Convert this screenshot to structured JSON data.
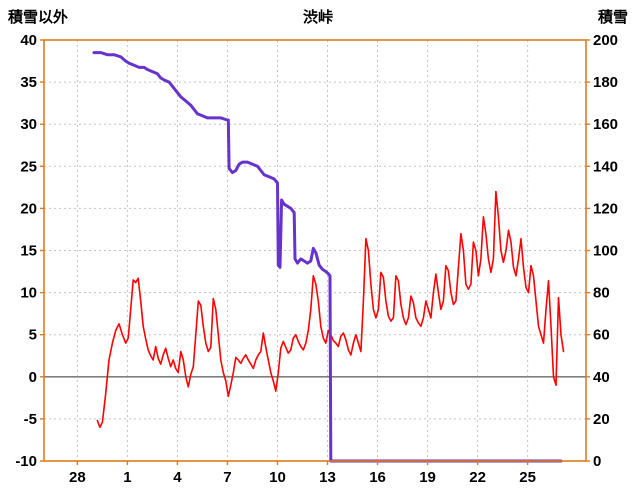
{
  "chart_data": {
    "type": "line",
    "title": "渋峠",
    "left_axis": {
      "label": "積雪以外",
      "min": -10,
      "max": 40,
      "ticks": [
        40,
        35,
        30,
        25,
        20,
        15,
        10,
        5,
        0,
        -5,
        -10
      ]
    },
    "right_axis": {
      "label": "積雪",
      "min": 0,
      "max": 200,
      "ticks": [
        200,
        180,
        160,
        140,
        120,
        100,
        80,
        60,
        40,
        20,
        0
      ]
    },
    "x_axis": {
      "min": -2,
      "max": 30.5,
      "tick_positions": [
        0,
        3,
        6,
        9,
        12,
        15,
        18,
        21,
        24,
        27
      ],
      "tick_labels": [
        "28",
        "1",
        "4",
        "7",
        "10",
        "13",
        "16",
        "19",
        "22",
        "25"
      ]
    },
    "zero_line_value": 0,
    "grid": true,
    "colors": {
      "frame": "#e07b1e",
      "grid": "#c4c4c4",
      "zero_line": "#7f7f7f",
      "text": "#000000",
      "temperature": "#ff0000",
      "snow": "#6633cc",
      "background": "#ffffff"
    },
    "series": [
      {
        "name": "積雪以外",
        "axis": "left",
        "color": "#ff0000",
        "width": 1.6,
        "points": [
          [
            1.2,
            -5.2
          ],
          [
            1.35,
            -6
          ],
          [
            1.5,
            -5.4
          ],
          [
            1.7,
            -2
          ],
          [
            1.9,
            2
          ],
          [
            2.1,
            4
          ],
          [
            2.3,
            5.5
          ],
          [
            2.5,
            6.3
          ],
          [
            2.7,
            5
          ],
          [
            2.9,
            4
          ],
          [
            3.05,
            4.6
          ],
          [
            3.2,
            8
          ],
          [
            3.35,
            11.5
          ],
          [
            3.5,
            11.2
          ],
          [
            3.65,
            11.7
          ],
          [
            3.8,
            9
          ],
          [
            3.95,
            6
          ],
          [
            4.1,
            4.5
          ],
          [
            4.25,
            3.2
          ],
          [
            4.4,
            2.5
          ],
          [
            4.55,
            2
          ],
          [
            4.7,
            3.6
          ],
          [
            4.85,
            2.2
          ],
          [
            5.0,
            1.5
          ],
          [
            5.15,
            2.6
          ],
          [
            5.3,
            3.4
          ],
          [
            5.45,
            2.2
          ],
          [
            5.6,
            1.2
          ],
          [
            5.75,
            2
          ],
          [
            5.9,
            1
          ],
          [
            6.05,
            0.5
          ],
          [
            6.2,
            3
          ],
          [
            6.35,
            2
          ],
          [
            6.5,
            0
          ],
          [
            6.65,
            -1.2
          ],
          [
            6.8,
            0.3
          ],
          [
            6.95,
            1.2
          ],
          [
            7.1,
            5
          ],
          [
            7.25,
            9
          ],
          [
            7.4,
            8.5
          ],
          [
            7.55,
            6
          ],
          [
            7.7,
            4
          ],
          [
            7.85,
            3
          ],
          [
            8.0,
            3.5
          ],
          [
            8.15,
            9.3
          ],
          [
            8.3,
            8
          ],
          [
            8.45,
            5
          ],
          [
            8.6,
            2
          ],
          [
            8.75,
            0.5
          ],
          [
            8.9,
            -0.5
          ],
          [
            9.05,
            -2.3
          ],
          [
            9.2,
            -1
          ],
          [
            9.35,
            0.5
          ],
          [
            9.5,
            2.3
          ],
          [
            9.65,
            2
          ],
          [
            9.8,
            1.6
          ],
          [
            9.95,
            2.2
          ],
          [
            10.1,
            2.6
          ],
          [
            10.25,
            2
          ],
          [
            10.4,
            1.5
          ],
          [
            10.55,
            1
          ],
          [
            10.7,
            2
          ],
          [
            10.85,
            2.6
          ],
          [
            11.0,
            3
          ],
          [
            11.15,
            5.2
          ],
          [
            11.3,
            3.5
          ],
          [
            11.45,
            2
          ],
          [
            11.6,
            0.5
          ],
          [
            11.75,
            -0.5
          ],
          [
            11.9,
            -1.7
          ],
          [
            12.05,
            0.5
          ],
          [
            12.2,
            3.4
          ],
          [
            12.35,
            4.2
          ],
          [
            12.5,
            3.5
          ],
          [
            12.65,
            2.8
          ],
          [
            12.8,
            3.2
          ],
          [
            12.95,
            4.6
          ],
          [
            13.1,
            5
          ],
          [
            13.25,
            4.2
          ],
          [
            13.4,
            3.6
          ],
          [
            13.55,
            3.2
          ],
          [
            13.7,
            4
          ],
          [
            13.85,
            5.5
          ],
          [
            14.0,
            8
          ],
          [
            14.15,
            12
          ],
          [
            14.3,
            11
          ],
          [
            14.45,
            9
          ],
          [
            14.6,
            6
          ],
          [
            14.75,
            4.6
          ],
          [
            14.9,
            4
          ],
          [
            15.05,
            5.5
          ],
          [
            15.2,
            5
          ],
          [
            15.35,
            4.3
          ],
          [
            15.5,
            4
          ],
          [
            15.65,
            3.6
          ],
          [
            15.8,
            4.8
          ],
          [
            15.95,
            5.2
          ],
          [
            16.1,
            4.4
          ],
          [
            16.25,
            3.2
          ],
          [
            16.4,
            2.6
          ],
          [
            16.55,
            4
          ],
          [
            16.7,
            5
          ],
          [
            16.85,
            4
          ],
          [
            17.0,
            3
          ],
          [
            17.15,
            9
          ],
          [
            17.3,
            16.4
          ],
          [
            17.45,
            15
          ],
          [
            17.6,
            11
          ],
          [
            17.75,
            8
          ],
          [
            17.9,
            7
          ],
          [
            18.05,
            8
          ],
          [
            18.2,
            12.4
          ],
          [
            18.35,
            11.8
          ],
          [
            18.5,
            9
          ],
          [
            18.65,
            7.2
          ],
          [
            18.8,
            6.6
          ],
          [
            18.95,
            7
          ],
          [
            19.1,
            12
          ],
          [
            19.25,
            11.4
          ],
          [
            19.4,
            8.6
          ],
          [
            19.55,
            7
          ],
          [
            19.7,
            6.2
          ],
          [
            19.85,
            7
          ],
          [
            20.0,
            9.6
          ],
          [
            20.15,
            8.8
          ],
          [
            20.3,
            7
          ],
          [
            20.45,
            6.4
          ],
          [
            20.6,
            6
          ],
          [
            20.75,
            7
          ],
          [
            20.9,
            9
          ],
          [
            21.05,
            8
          ],
          [
            21.2,
            7
          ],
          [
            21.35,
            10
          ],
          [
            21.5,
            12.2
          ],
          [
            21.65,
            10
          ],
          [
            21.8,
            8
          ],
          [
            21.95,
            9
          ],
          [
            22.1,
            13.2
          ],
          [
            22.25,
            12.6
          ],
          [
            22.4,
            10
          ],
          [
            22.55,
            8.6
          ],
          [
            22.7,
            9
          ],
          [
            22.85,
            13
          ],
          [
            23.0,
            17
          ],
          [
            23.15,
            15
          ],
          [
            23.3,
            11
          ],
          [
            23.45,
            10.4
          ],
          [
            23.6,
            11
          ],
          [
            23.75,
            16
          ],
          [
            23.9,
            15
          ],
          [
            24.05,
            12
          ],
          [
            24.2,
            14
          ],
          [
            24.35,
            19
          ],
          [
            24.5,
            17
          ],
          [
            24.65,
            14
          ],
          [
            24.8,
            12.4
          ],
          [
            24.95,
            14
          ],
          [
            25.1,
            22
          ],
          [
            25.25,
            19
          ],
          [
            25.4,
            15
          ],
          [
            25.55,
            13.6
          ],
          [
            25.7,
            15
          ],
          [
            25.85,
            17.4
          ],
          [
            26.0,
            16
          ],
          [
            26.15,
            13
          ],
          [
            26.3,
            12
          ],
          [
            26.45,
            14
          ],
          [
            26.6,
            16.4
          ],
          [
            26.75,
            13
          ],
          [
            26.9,
            10.6
          ],
          [
            27.05,
            10
          ],
          [
            27.2,
            13.2
          ],
          [
            27.35,
            12
          ],
          [
            27.5,
            9
          ],
          [
            27.65,
            6
          ],
          [
            27.8,
            5
          ],
          [
            27.95,
            4
          ],
          [
            28.1,
            8
          ],
          [
            28.25,
            11.4
          ],
          [
            28.4,
            6
          ],
          [
            28.55,
            0
          ],
          [
            28.7,
            -1
          ],
          [
            28.85,
            9.4
          ],
          [
            29.0,
            5
          ],
          [
            29.15,
            3
          ]
        ]
      },
      {
        "name": "積雪",
        "axis": "right",
        "color": "#6633cc",
        "width": 3,
        "points": [
          [
            1.0,
            194
          ],
          [
            1.4,
            194
          ],
          [
            1.8,
            193
          ],
          [
            2.2,
            193
          ],
          [
            2.6,
            192
          ],
          [
            2.9,
            190
          ],
          [
            3.1,
            189
          ],
          [
            3.4,
            188
          ],
          [
            3.7,
            187
          ],
          [
            4.0,
            187
          ],
          [
            4.2,
            186
          ],
          [
            4.5,
            185
          ],
          [
            4.8,
            184
          ],
          [
            5.0,
            182
          ],
          [
            5.2,
            181
          ],
          [
            5.5,
            180
          ],
          [
            5.8,
            177
          ],
          [
            6.0,
            175
          ],
          [
            6.2,
            173
          ],
          [
            6.5,
            171
          ],
          [
            6.8,
            169
          ],
          [
            7.0,
            167
          ],
          [
            7.2,
            165
          ],
          [
            7.5,
            164
          ],
          [
            7.8,
            163
          ],
          [
            8.2,
            163
          ],
          [
            8.6,
            163
          ],
          [
            9.0,
            162
          ],
          [
            9.05,
            162
          ],
          [
            9.1,
            139
          ],
          [
            9.3,
            137
          ],
          [
            9.5,
            138
          ],
          [
            9.7,
            141
          ],
          [
            9.9,
            142
          ],
          [
            10.2,
            142
          ],
          [
            10.5,
            141
          ],
          [
            10.8,
            140
          ],
          [
            11.0,
            138
          ],
          [
            11.2,
            136
          ],
          [
            11.5,
            135
          ],
          [
            11.8,
            134
          ],
          [
            12.0,
            132
          ],
          [
            12.05,
            93
          ],
          [
            12.15,
            92
          ],
          [
            12.25,
            124
          ],
          [
            12.4,
            122
          ],
          [
            12.6,
            121
          ],
          [
            12.8,
            120
          ],
          [
            13.0,
            118
          ],
          [
            13.05,
            96
          ],
          [
            13.2,
            94
          ],
          [
            13.4,
            96
          ],
          [
            13.6,
            95
          ],
          [
            13.8,
            94
          ],
          [
            14.0,
            95
          ],
          [
            14.15,
            101
          ],
          [
            14.3,
            99
          ],
          [
            14.5,
            93
          ],
          [
            14.7,
            91
          ],
          [
            14.9,
            90
          ],
          [
            15.05,
            89
          ],
          [
            15.15,
            88
          ],
          [
            15.2,
            0
          ],
          [
            16,
            0
          ],
          [
            17,
            0
          ],
          [
            18,
            0
          ],
          [
            19,
            0
          ],
          [
            20,
            0
          ],
          [
            21,
            0
          ],
          [
            22,
            0
          ],
          [
            23,
            0
          ],
          [
            24,
            0
          ],
          [
            25,
            0
          ],
          [
            26,
            0
          ],
          [
            27,
            0
          ],
          [
            28,
            0
          ],
          [
            29,
            0
          ]
        ]
      }
    ]
  }
}
